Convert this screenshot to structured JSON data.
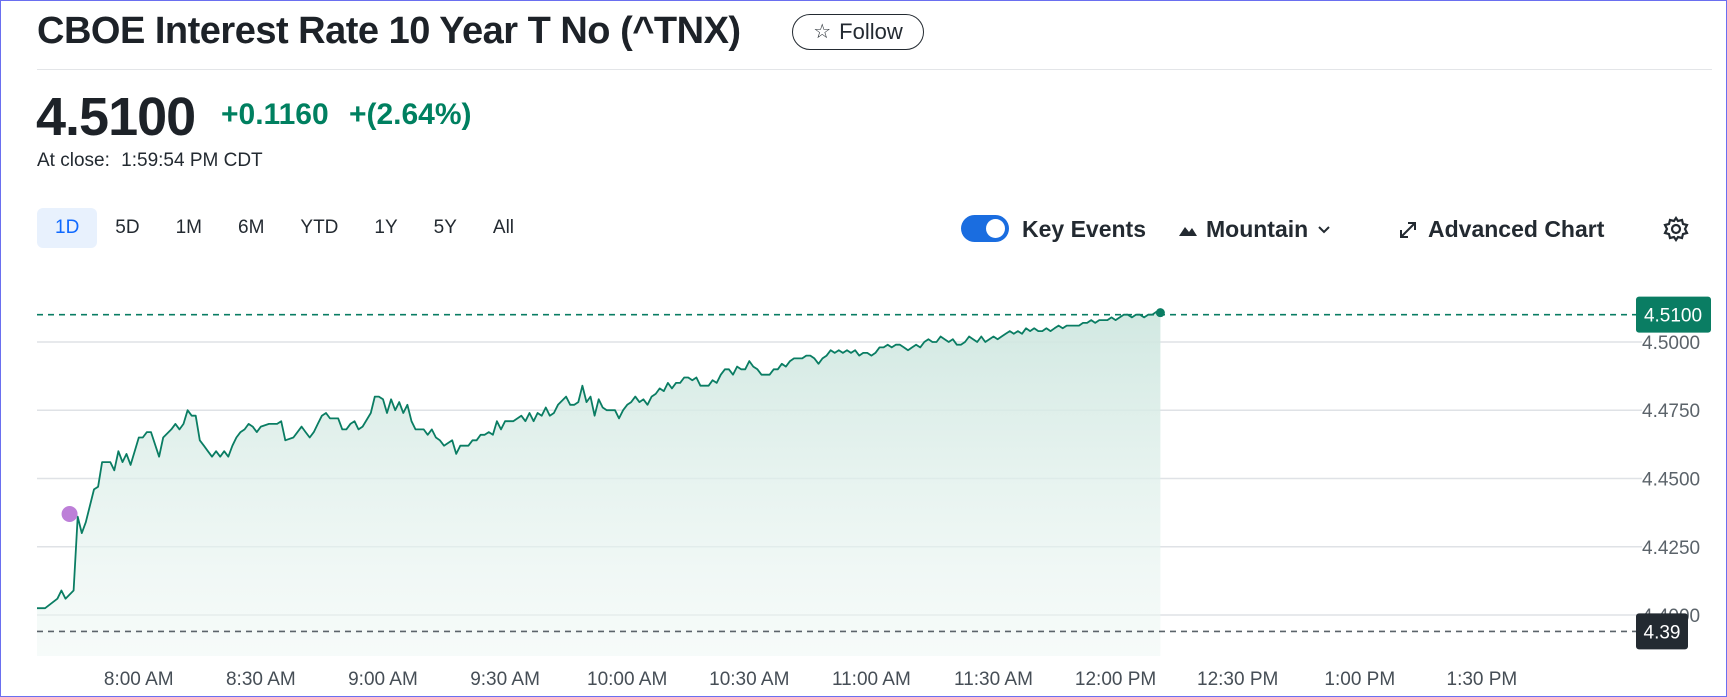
{
  "header": {
    "title": "CBOE Interest Rate 10 Year T No (^TNX)",
    "follow_label": "Follow"
  },
  "quote": {
    "price": "4.5100",
    "change": "+0.1160",
    "change_percent": "+(2.64%)",
    "close_label": "At close:",
    "close_time": "1:59:54 PM CDT",
    "positive_color": "#008060"
  },
  "toolbar": {
    "ranges": [
      "1D",
      "5D",
      "1M",
      "6M",
      "YTD",
      "1Y",
      "5Y",
      "All"
    ],
    "active_range": "1D",
    "key_events_label": "Key Events",
    "key_events_on": true,
    "chart_type_label": "Mountain",
    "advanced_chart_label": "Advanced Chart",
    "icons": {
      "follow": "star-icon",
      "chart_type": "mountain-icon",
      "chart_type_menu": "chevron-down-icon",
      "advanced": "expand-icon",
      "settings": "gear-icon"
    }
  },
  "chart_data": {
    "type": "area",
    "x_unit": "time of day (CDT)",
    "x_ticks": [
      "8:00 AM",
      "8:30 AM",
      "9:00 AM",
      "9:30 AM",
      "10:00 AM",
      "10:30 AM",
      "11:00 AM",
      "11:30 AM",
      "12:00 PM",
      "12:30 PM",
      "1:00 PM",
      "1:30 PM"
    ],
    "y_ticks": [
      "4.5000",
      "4.4750",
      "4.4500",
      "4.4250",
      "4.4000"
    ],
    "ylim": [
      4.385,
      4.5205
    ],
    "x_range": [
      "7:35 AM",
      "2:00 PM"
    ],
    "current_price_label": "4.5100",
    "current_price_value": 4.51,
    "previous_close_label": "4.39",
    "previous_close_value": 4.394,
    "line_color": "#0a7d63",
    "fill_color": "#d6ece6",
    "key_event_color": "#bd7fd8",
    "key_event_value": 4.437,
    "key_event_time": "7:43 AM",
    "grid": "horizontal",
    "series": [
      {
        "points": [
          [
            "7:35",
            4.4025
          ],
          [
            "7:37",
            4.4025
          ],
          [
            "7:40",
            4.406
          ],
          [
            "7:41",
            4.409
          ],
          [
            "7:42",
            4.406
          ],
          [
            "7:44",
            4.409
          ],
          [
            "7:45",
            4.436
          ],
          [
            "7:46",
            4.43
          ],
          [
            "7:47",
            4.434
          ],
          [
            "7:49",
            4.446
          ],
          [
            "7:50",
            4.447
          ],
          [
            "7:51",
            4.456
          ],
          [
            "7:53",
            4.456
          ],
          [
            "7:54",
            4.453
          ],
          [
            "7:55",
            4.46
          ],
          [
            "7:56",
            4.456
          ],
          [
            "7:57",
            4.459
          ],
          [
            "7:58",
            4.455
          ],
          [
            "7:59",
            4.46
          ],
          [
            "8:00",
            4.465
          ],
          [
            "8:01",
            4.465
          ],
          [
            "8:02",
            4.467
          ],
          [
            "8:03",
            4.467
          ],
          [
            "8:05",
            4.458
          ],
          [
            "8:06",
            4.465
          ],
          [
            "8:08",
            4.468
          ],
          [
            "8:09",
            4.47
          ],
          [
            "8:10",
            4.468
          ],
          [
            "8:11",
            4.47
          ],
          [
            "8:12",
            4.475
          ],
          [
            "8:13",
            4.473
          ],
          [
            "8:14",
            4.473
          ],
          [
            "8:15",
            4.464
          ],
          [
            "8:16",
            4.462
          ],
          [
            "8:17",
            4.46
          ],
          [
            "8:18",
            4.458
          ],
          [
            "8:19",
            4.46
          ],
          [
            "8:20",
            4.458
          ],
          [
            "8:21",
            4.46
          ],
          [
            "8:22",
            4.458
          ],
          [
            "8:23",
            4.462
          ],
          [
            "8:24",
            4.465
          ],
          [
            "8:25",
            4.467
          ],
          [
            "8:26",
            4.468
          ],
          [
            "8:27",
            4.47
          ],
          [
            "8:28",
            4.469
          ],
          [
            "8:29",
            4.467
          ],
          [
            "8:30",
            4.469
          ],
          [
            "8:32",
            4.47
          ],
          [
            "8:34",
            4.47
          ],
          [
            "8:35",
            4.471
          ],
          [
            "8:36",
            4.464
          ],
          [
            "8:38",
            4.465
          ],
          [
            "8:39",
            4.467
          ],
          [
            "8:40",
            4.469
          ],
          [
            "8:41",
            4.467
          ],
          [
            "8:42",
            4.465
          ],
          [
            "8:43",
            4.467
          ],
          [
            "8:44",
            4.47
          ],
          [
            "8:45",
            4.473
          ],
          [
            "8:46",
            4.474
          ],
          [
            "8:47",
            4.472
          ],
          [
            "8:49",
            4.472
          ],
          [
            "8:50",
            4.468
          ],
          [
            "8:51",
            4.468
          ],
          [
            "8:52",
            4.47
          ],
          [
            "8:53",
            4.471
          ],
          [
            "8:54",
            4.468
          ],
          [
            "8:55",
            4.469
          ],
          [
            "8:57",
            4.474
          ],
          [
            "8:58",
            4.48
          ],
          [
            "8:59",
            4.48
          ],
          [
            "9:00",
            4.479
          ],
          [
            "9:01",
            4.474
          ],
          [
            "9:02",
            4.479
          ],
          [
            "9:03",
            4.475
          ],
          [
            "9:04",
            4.478
          ],
          [
            "9:05",
            4.474
          ],
          [
            "9:06",
            4.477
          ],
          [
            "9:07",
            4.471
          ],
          [
            "9:08",
            4.468
          ],
          [
            "9:10",
            4.468
          ],
          [
            "9:11",
            4.466
          ],
          [
            "9:12",
            4.468
          ],
          [
            "9:13",
            4.465
          ],
          [
            "9:14",
            4.464
          ],
          [
            "9:15",
            4.462
          ],
          [
            "9:17",
            4.464
          ],
          [
            "9:18",
            4.459
          ],
          [
            "9:19",
            4.462
          ],
          [
            "9:20",
            4.462
          ],
          [
            "9:21",
            4.462
          ],
          [
            "9:22",
            4.464
          ],
          [
            "9:23",
            4.464
          ],
          [
            "9:24",
            4.466
          ],
          [
            "9:25",
            4.466
          ],
          [
            "9:26",
            4.467
          ],
          [
            "9:27",
            4.466
          ],
          [
            "9:28",
            4.471
          ],
          [
            "9:29",
            4.468
          ],
          [
            "9:30",
            4.471
          ],
          [
            "9:32",
            4.471
          ],
          [
            "9:34",
            4.473
          ],
          [
            "9:35",
            4.471
          ],
          [
            "9:36",
            4.474
          ],
          [
            "9:37",
            4.471
          ],
          [
            "9:38",
            4.474
          ],
          [
            "9:39",
            4.473
          ],
          [
            "9:40",
            4.476
          ],
          [
            "9:41",
            4.473
          ],
          [
            "9:42",
            4.474
          ],
          [
            "9:43",
            4.477
          ],
          [
            "9:45",
            4.48
          ],
          [
            "9:46",
            4.477
          ],
          [
            "9:47",
            4.477
          ],
          [
            "9:48",
            4.478
          ],
          [
            "9:49",
            4.484
          ],
          [
            "9:50",
            4.478
          ],
          [
            "9:51",
            4.48
          ],
          [
            "9:52",
            4.473
          ],
          [
            "9:53",
            4.479
          ],
          [
            "9:54",
            4.476
          ],
          [
            "9:55",
            4.475
          ],
          [
            "9:56",
            4.475
          ],
          [
            "9:57",
            4.475
          ],
          [
            "9:58",
            4.472
          ],
          [
            "9:59",
            4.475
          ],
          [
            "10:00",
            4.477
          ],
          [
            "10:01",
            4.478
          ],
          [
            "10:02",
            4.48
          ],
          [
            "10:03",
            4.478
          ],
          [
            "10:04",
            4.479
          ],
          [
            "10:05",
            4.477
          ],
          [
            "10:06",
            4.48
          ],
          [
            "10:07",
            4.481
          ],
          [
            "10:08",
            4.483
          ],
          [
            "10:09",
            4.482
          ],
          [
            "10:10",
            4.485
          ],
          [
            "10:11",
            4.483
          ],
          [
            "10:12",
            4.485
          ],
          [
            "10:13",
            4.485
          ],
          [
            "10:14",
            4.487
          ],
          [
            "10:15",
            4.487
          ],
          [
            "10:16",
            4.486
          ],
          [
            "10:17",
            4.487
          ],
          [
            "10:18",
            4.484
          ],
          [
            "10:19",
            4.484
          ],
          [
            "10:20",
            4.484
          ],
          [
            "10:21",
            4.486
          ],
          [
            "10:22",
            4.485
          ],
          [
            "10:23",
            4.488
          ],
          [
            "10:24",
            4.49
          ],
          [
            "10:25",
            4.49
          ],
          [
            "10:26",
            4.488
          ],
          [
            "10:27",
            4.491
          ],
          [
            "10:28",
            4.49
          ],
          [
            "10:29",
            4.49
          ],
          [
            "10:30",
            4.493
          ],
          [
            "10:31",
            4.491
          ],
          [
            "10:32",
            4.49
          ],
          [
            "10:33",
            4.488
          ],
          [
            "10:35",
            4.488
          ],
          [
            "10:36",
            4.49
          ],
          [
            "10:37",
            4.49
          ],
          [
            "10:38",
            4.492
          ],
          [
            "10:39",
            4.491
          ],
          [
            "10:40",
            4.493
          ],
          [
            "10:41",
            4.494
          ],
          [
            "10:42",
            4.494
          ],
          [
            "10:43",
            4.494
          ],
          [
            "10:44",
            4.495
          ],
          [
            "10:45",
            4.495
          ],
          [
            "10:46",
            4.494
          ],
          [
            "10:47",
            4.492
          ],
          [
            "10:48",
            4.494
          ],
          [
            "10:49",
            4.495
          ],
          [
            "10:50",
            4.497
          ],
          [
            "10:51",
            4.496
          ],
          [
            "10:52",
            4.497
          ],
          [
            "10:53",
            4.496
          ],
          [
            "10:54",
            4.497
          ],
          [
            "10:55",
            4.496
          ],
          [
            "10:56",
            4.497
          ],
          [
            "10:57",
            4.495
          ],
          [
            "10:58",
            4.496
          ],
          [
            "10:59",
            4.496
          ],
          [
            "11:00",
            4.495
          ],
          [
            "11:01",
            4.496
          ],
          [
            "11:02",
            4.498
          ],
          [
            "11:03",
            4.498
          ],
          [
            "11:04",
            4.499
          ],
          [
            "11:05",
            4.498
          ],
          [
            "11:06",
            4.499
          ],
          [
            "11:07",
            4.499
          ],
          [
            "11:08",
            4.498
          ],
          [
            "11:09",
            4.497
          ],
          [
            "11:10",
            4.498
          ],
          [
            "11:11",
            4.499
          ],
          [
            "11:12",
            4.498
          ],
          [
            "11:13",
            4.5
          ],
          [
            "11:14",
            4.501
          ],
          [
            "11:15",
            4.5
          ],
          [
            "11:16",
            4.5
          ],
          [
            "11:17",
            4.502
          ],
          [
            "11:18",
            4.501
          ],
          [
            "11:19",
            4.5
          ],
          [
            "11:20",
            4.501
          ],
          [
            "11:21",
            4.499
          ],
          [
            "11:22",
            4.499
          ],
          [
            "11:23",
            4.5
          ],
          [
            "11:24",
            4.502
          ],
          [
            "11:25",
            4.501
          ],
          [
            "11:26",
            4.5
          ],
          [
            "11:27",
            4.502
          ],
          [
            "11:28",
            4.5
          ],
          [
            "11:29",
            4.501
          ],
          [
            "11:30",
            4.502
          ],
          [
            "11:31",
            4.501
          ],
          [
            "11:32",
            4.502
          ],
          [
            "11:33",
            4.503
          ],
          [
            "11:34",
            4.504
          ],
          [
            "11:35",
            4.503
          ],
          [
            "11:36",
            4.504
          ],
          [
            "11:37",
            4.503
          ],
          [
            "11:38",
            4.505
          ],
          [
            "11:39",
            4.504
          ],
          [
            "11:40",
            4.505
          ],
          [
            "11:41",
            4.504
          ],
          [
            "11:42",
            4.504
          ],
          [
            "11:43",
            4.505
          ],
          [
            "11:44",
            4.504
          ],
          [
            "11:45",
            4.505
          ],
          [
            "11:46",
            4.506
          ],
          [
            "11:47",
            4.505
          ],
          [
            "11:48",
            4.506
          ],
          [
            "11:49",
            4.506
          ],
          [
            "11:50",
            4.506
          ],
          [
            "11:51",
            4.506
          ],
          [
            "11:52",
            4.507
          ],
          [
            "11:53",
            4.507
          ],
          [
            "11:54",
            4.508
          ],
          [
            "11:55",
            4.507
          ],
          [
            "11:56",
            4.508
          ],
          [
            "11:57",
            4.508
          ],
          [
            "11:58",
            4.508
          ],
          [
            "11:59",
            4.509
          ],
          [
            "12:00",
            4.508
          ],
          [
            "12:01",
            4.509
          ],
          [
            "12:02",
            4.51
          ],
          [
            "12:03",
            4.51
          ],
          [
            "12:04",
            4.509
          ],
          [
            "12:05",
            4.51
          ],
          [
            "12:06",
            4.51
          ],
          [
            "12:07",
            4.509
          ],
          [
            "12:08",
            4.51
          ],
          [
            "12:09",
            4.51
          ],
          [
            "12:10",
            4.511
          ],
          [
            "12:11",
            4.51
          ]
        ]
      }
    ]
  }
}
